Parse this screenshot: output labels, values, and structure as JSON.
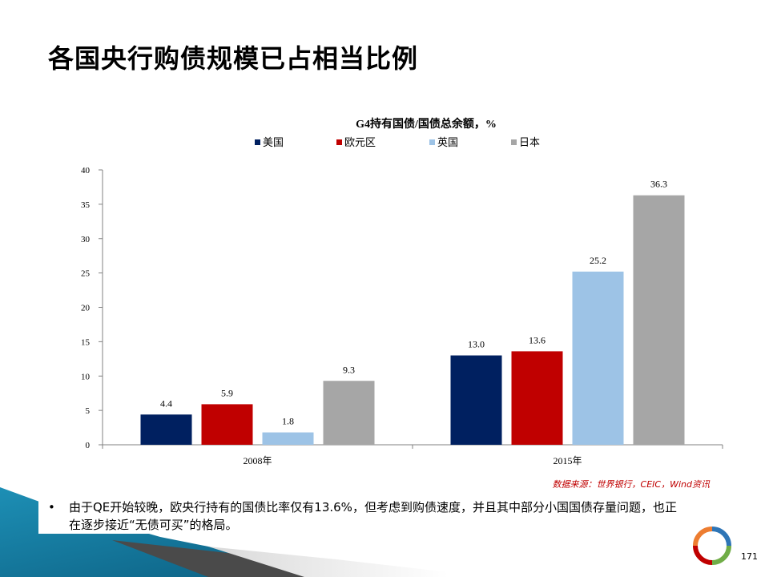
{
  "slide": {
    "title": "各国央行购债规模已占相当比例",
    "source": "数据来源：世界银行，CEIC，Wind资讯",
    "bullet": "由于QE开始较晚，欧央行持有的国债比率仅有13.6%，但考虑到购债速度，并且其中部分小国国债存量问题，也正在逐步接近“无债可买”的格局。",
    "page_number": "171"
  },
  "chart_data": {
    "type": "bar",
    "title": "G4持有国债/国债总余额，%",
    "categories": [
      "2008年",
      "2015年"
    ],
    "series": [
      {
        "name": "美国",
        "values": [
          4.4,
          13.0
        ],
        "color": "#002060"
      },
      {
        "name": "欧元区",
        "values": [
          5.9,
          13.6
        ],
        "color": "#c00000"
      },
      {
        "name": "英国",
        "values": [
          1.8,
          25.2
        ],
        "color": "#9dc3e6"
      },
      {
        "name": "日本",
        "values": [
          9.3,
          36.3
        ],
        "color": "#a6a6a6"
      }
    ],
    "ylim": [
      0,
      40
    ],
    "yticks": [
      0,
      5,
      10,
      15,
      20,
      25,
      30,
      35,
      40
    ],
    "legend": "top",
    "grid": false
  }
}
